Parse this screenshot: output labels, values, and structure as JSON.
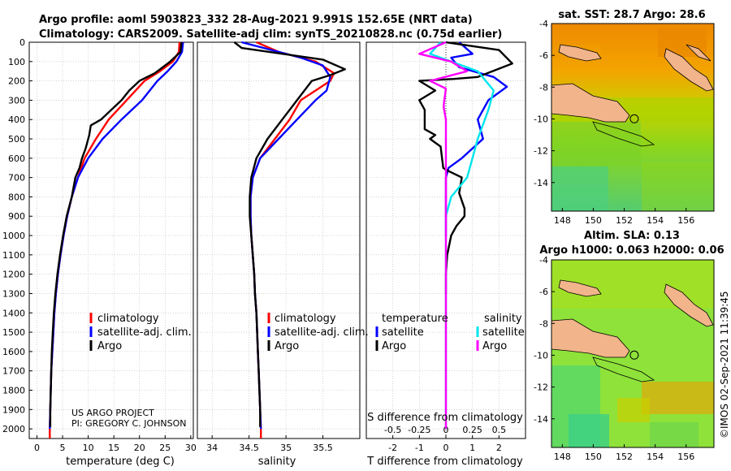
{
  "header": {
    "title_line1": "Argo profile: aoml 5903823_332 28-Aug-2021 9.991S 152.65E (NRT data)",
    "title_line2": "Climatology: CARS2009. Satellite-adj clim: synTS_20210828.nc (0.75d earlier)"
  },
  "colors": {
    "climatology": "#ff0000",
    "satellite": "#0000ff",
    "argo": "#000000",
    "sat_salinity": "#00e5ee",
    "argo_salinity": "#ff00ff"
  },
  "chart_data": [
    {
      "type": "line",
      "id": "temperature",
      "xlabel": "temperature (deg C)",
      "ylabel": "",
      "xlim": [
        -1.5,
        30.5
      ],
      "ylim": [
        0,
        2050
      ],
      "xticks": [
        0,
        5,
        10,
        15,
        20,
        25,
        30
      ],
      "yticks": [
        0,
        100,
        200,
        300,
        400,
        500,
        600,
        700,
        800,
        900,
        1000,
        1100,
        1200,
        1300,
        1400,
        1500,
        1600,
        1700,
        1800,
        1900,
        2000
      ],
      "legend": [
        "climatology",
        "satellite-adj. clim.",
        "Argo"
      ],
      "annotations": [
        "US ARGO PROJECT",
        "PI: GREGORY C. JOHNSON"
      ],
      "series": [
        {
          "name": "climatology",
          "color": "#ff0000",
          "points": [
            [
              27.8,
              0
            ],
            [
              27.7,
              50
            ],
            [
              26.5,
              100
            ],
            [
              24,
              150
            ],
            [
              21,
              200
            ],
            [
              17.5,
              300
            ],
            [
              14,
              400
            ],
            [
              11.5,
              500
            ],
            [
              9.3,
              600
            ],
            [
              8,
              700
            ],
            [
              6.8,
              800
            ],
            [
              5.9,
              900
            ],
            [
              5.2,
              1000
            ],
            [
              4.6,
              1100
            ],
            [
              4.1,
              1200
            ],
            [
              3.7,
              1300
            ],
            [
              3.4,
              1400
            ],
            [
              3.2,
              1500
            ],
            [
              3.0,
              1600
            ],
            [
              2.8,
              1700
            ],
            [
              2.7,
              1800
            ],
            [
              2.6,
              1900
            ],
            [
              2.5,
              2000
            ],
            [
              2.5,
              2050
            ]
          ]
        },
        {
          "name": "satellite-adj. clim.",
          "color": "#0000ff",
          "points": [
            [
              28.5,
              0
            ],
            [
              28.3,
              50
            ],
            [
              27.2,
              100
            ],
            [
              25.5,
              150
            ],
            [
              23.5,
              200
            ],
            [
              20.5,
              300
            ],
            [
              16.5,
              400
            ],
            [
              12.8,
              500
            ],
            [
              10,
              600
            ],
            [
              8,
              700
            ],
            [
              6.8,
              800
            ],
            [
              5.9,
              900
            ],
            [
              5.2,
              1000
            ],
            [
              4.6,
              1100
            ],
            [
              4.1,
              1200
            ],
            [
              3.7,
              1300
            ],
            [
              3.4,
              1400
            ],
            [
              3.2,
              1500
            ],
            [
              3.0,
              1600
            ],
            [
              2.8,
              1700
            ],
            [
              2.7,
              1800
            ],
            [
              2.6,
              1900
            ],
            [
              2.5,
              2000
            ]
          ]
        },
        {
          "name": "Argo",
          "color": "#000000",
          "points": [
            [
              28.2,
              0
            ],
            [
              28,
              50
            ],
            [
              26,
              100
            ],
            [
              23,
              160
            ],
            [
              20,
              200
            ],
            [
              18,
              250
            ],
            [
              16.5,
              300
            ],
            [
              14.5,
              350
            ],
            [
              12.5,
              400
            ],
            [
              10.5,
              430
            ],
            [
              10.2,
              480
            ],
            [
              9.5,
              550
            ],
            [
              8.8,
              600
            ],
            [
              8.3,
              650
            ],
            [
              7.5,
              700
            ],
            [
              6.8,
              800
            ],
            [
              5.8,
              900
            ],
            [
              5.1,
              1000
            ],
            [
              4.5,
              1100
            ],
            [
              4.0,
              1200
            ],
            [
              3.6,
              1300
            ],
            [
              3.3,
              1400
            ],
            [
              3.1,
              1500
            ],
            [
              2.9,
              1600
            ],
            [
              2.8,
              1700
            ],
            [
              2.7,
              1800
            ],
            [
              2.6,
              1900
            ],
            [
              2.6,
              1990
            ]
          ]
        }
      ]
    },
    {
      "type": "line",
      "id": "salinity",
      "xlabel": "salinity",
      "xlim": [
        33.8,
        36.0
      ],
      "ylim": [
        0,
        2050
      ],
      "xticks": [
        34,
        34.5,
        35,
        35.5
      ],
      "legend": [
        "climatology",
        "satellite-adj. clim.",
        "Argo"
      ],
      "series": [
        {
          "name": "climatology",
          "color": "#ff0000",
          "points": [
            [
              34.6,
              0
            ],
            [
              34.9,
              50
            ],
            [
              35.4,
              100
            ],
            [
              35.65,
              160
            ],
            [
              35.6,
              200
            ],
            [
              35.4,
              250
            ],
            [
              35.2,
              300
            ],
            [
              35.05,
              400
            ],
            [
              34.85,
              500
            ],
            [
              34.65,
              600
            ],
            [
              34.55,
              700
            ],
            [
              34.52,
              800
            ],
            [
              34.52,
              900
            ],
            [
              34.53,
              1000
            ],
            [
              34.55,
              1100
            ],
            [
              34.57,
              1200
            ],
            [
              34.58,
              1300
            ],
            [
              34.6,
              1400
            ],
            [
              34.61,
              1500
            ],
            [
              34.62,
              1600
            ],
            [
              34.63,
              1700
            ],
            [
              34.64,
              1800
            ],
            [
              34.65,
              1900
            ],
            [
              34.66,
              2000
            ],
            [
              34.66,
              2050
            ]
          ]
        },
        {
          "name": "satellite-adj. clim.",
          "color": "#0000ff",
          "points": [
            [
              34.4,
              0
            ],
            [
              34.9,
              50
            ],
            [
              35.2,
              80
            ],
            [
              35.5,
              120
            ],
            [
              35.6,
              180
            ],
            [
              35.55,
              250
            ],
            [
              35.4,
              300
            ],
            [
              35.15,
              400
            ],
            [
              34.9,
              500
            ],
            [
              34.65,
              600
            ],
            [
              34.55,
              700
            ],
            [
              34.52,
              800
            ],
            [
              34.52,
              900
            ],
            [
              34.53,
              1000
            ],
            [
              34.55,
              1100
            ],
            [
              34.57,
              1200
            ],
            [
              34.58,
              1300
            ],
            [
              34.6,
              1400
            ],
            [
              34.61,
              1500
            ],
            [
              34.62,
              1600
            ],
            [
              34.63,
              1700
            ],
            [
              34.64,
              1800
            ],
            [
              34.65,
              1900
            ],
            [
              34.66,
              2000
            ]
          ]
        },
        {
          "name": "Argo",
          "color": "#000000",
          "points": [
            [
              34.3,
              0
            ],
            [
              34.4,
              30
            ],
            [
              35.5,
              90
            ],
            [
              35.8,
              140
            ],
            [
              35.6,
              170
            ],
            [
              35.35,
              200
            ],
            [
              35.15,
              300
            ],
            [
              34.95,
              400
            ],
            [
              34.75,
              500
            ],
            [
              34.6,
              600
            ],
            [
              34.53,
              700
            ],
            [
              34.51,
              800
            ],
            [
              34.51,
              900
            ],
            [
              34.53,
              1000
            ],
            [
              34.55,
              1100
            ],
            [
              34.57,
              1200
            ],
            [
              34.58,
              1300
            ],
            [
              34.6,
              1400
            ],
            [
              34.61,
              1500
            ],
            [
              34.62,
              1600
            ],
            [
              34.63,
              1700
            ],
            [
              34.64,
              1800
            ],
            [
              34.65,
              1900
            ],
            [
              34.65,
              1990
            ]
          ]
        }
      ]
    },
    {
      "type": "line",
      "id": "difference",
      "xlabel": "T difference from climatology",
      "xlabel2": "S difference from climatology",
      "xlim": [
        -3.0,
        3.0
      ],
      "ylim": [
        0,
        2050
      ],
      "xticks_t": [
        -2,
        -1,
        0,
        1,
        2
      ],
      "xticks_s": [
        -0.5,
        -0.25,
        0,
        0.25,
        0.5
      ],
      "s_scale": 4,
      "legend_temperature_title": "temperature",
      "legend_salinity_title": "salinity",
      "legend": [
        "satellite",
        "Argo",
        "satellite",
        "Argo"
      ],
      "series": [
        {
          "name": "T satellite",
          "color": "#0000ff",
          "points": [
            [
              0.5,
              0
            ],
            [
              1.0,
              60
            ],
            [
              0.2,
              80
            ],
            [
              0.5,
              130
            ],
            [
              1.8,
              180
            ],
            [
              2.3,
              230
            ],
            [
              1.6,
              300
            ],
            [
              1.2,
              400
            ],
            [
              1.4,
              500
            ],
            [
              0.6,
              600
            ],
            [
              0.1,
              650
            ],
            [
              0,
              700
            ],
            [
              0,
              900
            ],
            [
              0,
              1000
            ]
          ]
        },
        {
          "name": "T Argo",
          "color": "#000000",
          "points": [
            [
              0,
              0
            ],
            [
              2.0,
              40
            ],
            [
              2.5,
              110
            ],
            [
              1.2,
              180
            ],
            [
              0.3,
              190
            ],
            [
              -1.0,
              200
            ],
            [
              -0.4,
              250
            ],
            [
              -1.0,
              300
            ],
            [
              -0.8,
              350
            ],
            [
              -0.8,
              400
            ],
            [
              -0.8,
              450
            ],
            [
              -0.4,
              480
            ],
            [
              -0.6,
              500
            ],
            [
              -0.2,
              540
            ],
            [
              -0.1,
              650
            ],
            [
              0,
              660
            ],
            [
              0.6,
              700
            ],
            [
              0.5,
              780
            ],
            [
              0.7,
              860
            ],
            [
              0.7,
              900
            ],
            [
              0.4,
              950
            ],
            [
              0.2,
              1000
            ],
            [
              0.05,
              1100
            ],
            [
              0,
              1200
            ],
            [
              0,
              1300
            ]
          ]
        },
        {
          "name": "S satellite",
          "color": "#00e5ee",
          "points": [
            [
              -0.05,
              0
            ],
            [
              -0.15,
              60
            ],
            [
              0.05,
              100
            ],
            [
              0.3,
              150
            ],
            [
              0.45,
              250
            ],
            [
              0.4,
              350
            ],
            [
              0.3,
              500
            ],
            [
              0.25,
              600
            ],
            [
              0.2,
              700
            ],
            [
              0.05,
              800
            ],
            [
              0,
              900
            ],
            [
              0,
              2000
            ]
          ]
        },
        {
          "name": "S Argo",
          "color": "#ff00ff",
          "points": [
            [
              0,
              0
            ],
            [
              -0.25,
              60
            ],
            [
              0.05,
              100
            ],
            [
              0.2,
              150
            ],
            [
              -0.15,
              200
            ],
            [
              0,
              240
            ],
            [
              -0.02,
              320
            ],
            [
              -0.02,
              340
            ],
            [
              0,
              400
            ],
            [
              0,
              2000
            ]
          ]
        }
      ]
    },
    {
      "type": "heatmap",
      "id": "sst-map",
      "title": "sat. SST: 28.7 Argo: 28.6",
      "xticks": [
        148,
        150,
        152,
        154,
        156
      ],
      "yticks": [
        -4,
        -6,
        -8,
        -10,
        -12,
        -14
      ],
      "xlim": [
        147.3,
        157.8
      ],
      "ylim": [
        -15.8,
        -4
      ],
      "marker": {
        "lon": 152.65,
        "lat": -9.991
      }
    },
    {
      "type": "heatmap",
      "id": "sla-map",
      "title_line1": "Altim. SLA: 0.13",
      "title_line2": "Argo h1000: 0.063 h2000: 0.06",
      "xticks": [
        148,
        150,
        152,
        154,
        156
      ],
      "yticks": [
        -4,
        -6,
        -8,
        -10,
        -12,
        -14
      ],
      "xlim": [
        147.3,
        157.8
      ],
      "ylim": [
        -15.8,
        -4
      ],
      "marker": {
        "lon": 152.65,
        "lat": -9.991
      }
    }
  ],
  "footer": {
    "side_label": "©IMOS 02-Sep-2021 11:39:45"
  }
}
